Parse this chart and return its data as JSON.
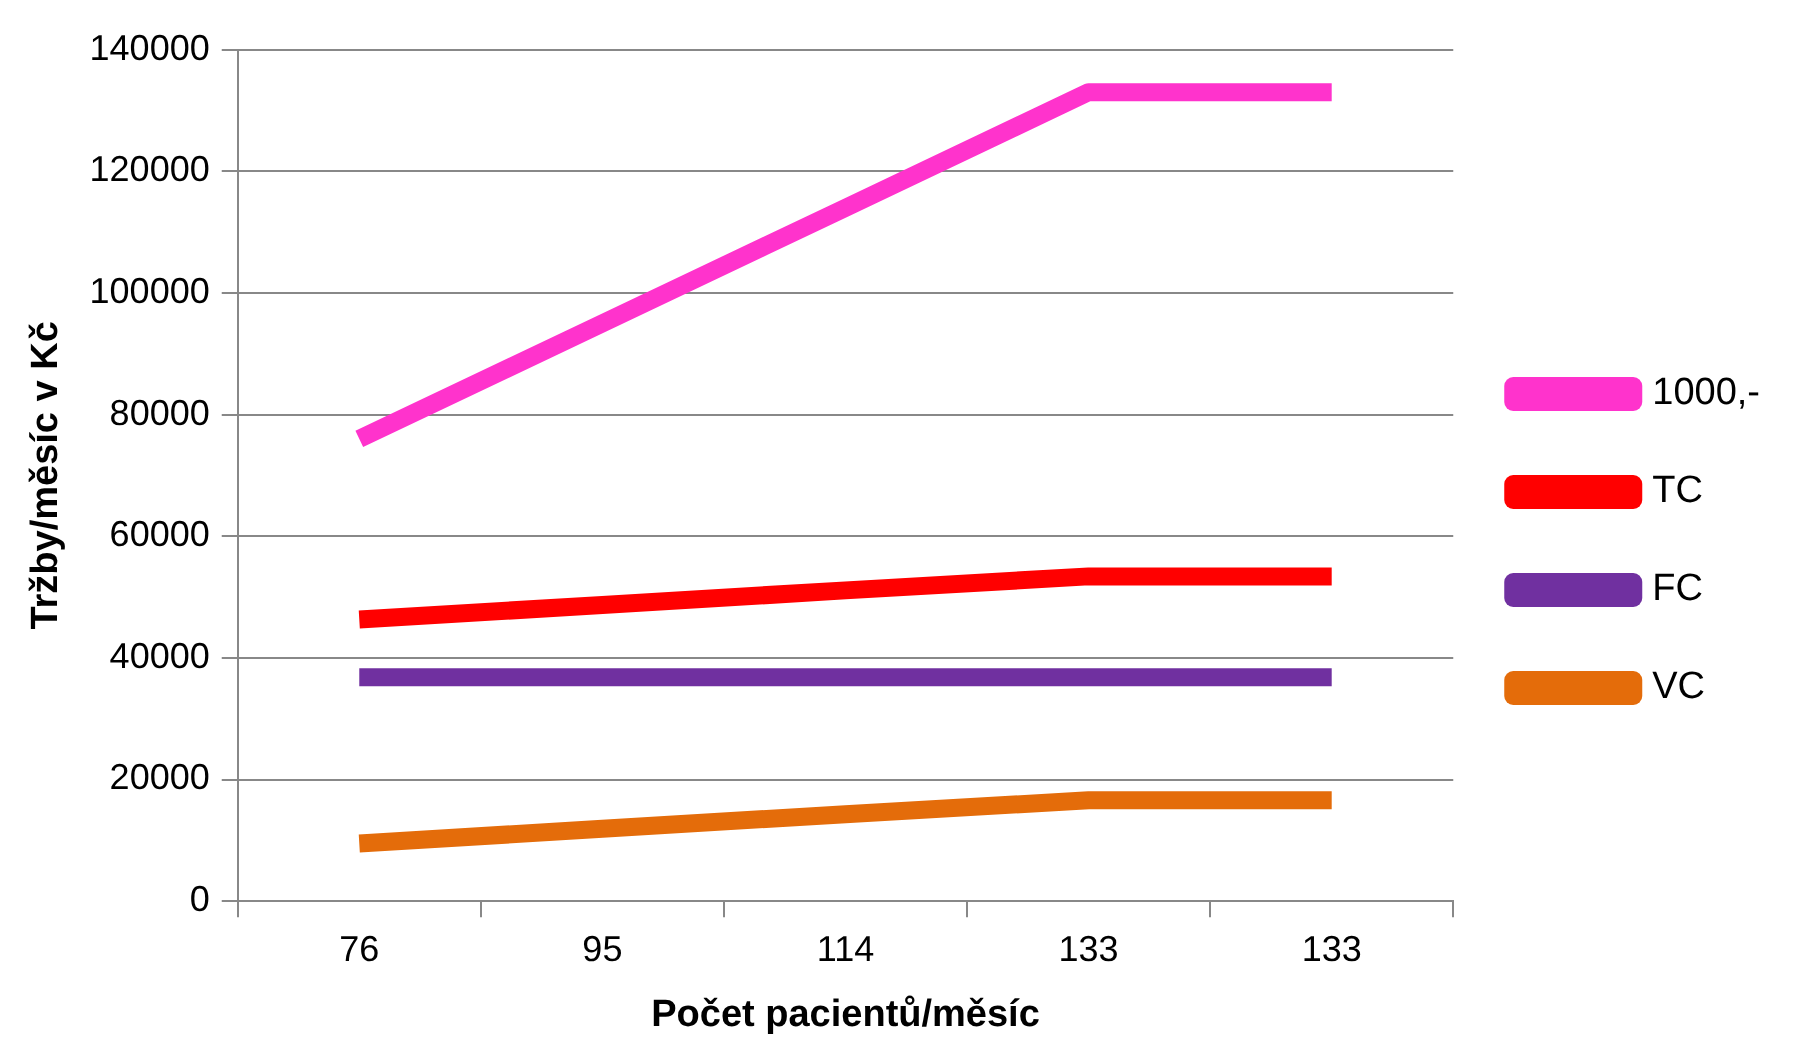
{
  "chart_data": {
    "type": "line",
    "xlabel": "Počet pacientů/měsíc",
    "ylabel": "Tržby/měsíc v Kč",
    "categories": [
      "76",
      "95",
      "114",
      "133",
      "133"
    ],
    "series": [
      {
        "name": "1000,-",
        "color": "#ff33cc",
        "values": [
          76000,
          95000,
          114000,
          133000,
          133000
        ]
      },
      {
        "name": "TC",
        "color": "#ff0000",
        "values": [
          46300,
          48700,
          51100,
          53400,
          53400
        ]
      },
      {
        "name": "FC",
        "color": "#7030a0",
        "values": [
          36800,
          36800,
          36800,
          36800,
          36800
        ]
      },
      {
        "name": "VC",
        "color": "#e46c0a",
        "values": [
          9500,
          11900,
          14300,
          16600,
          16600
        ]
      }
    ],
    "ylim": [
      0,
      140000
    ],
    "yticks": [
      0,
      20000,
      40000,
      60000,
      80000,
      100000,
      120000,
      140000
    ],
    "grid": "y",
    "legend": "right",
    "marker": "none",
    "line_style": "solid"
  }
}
